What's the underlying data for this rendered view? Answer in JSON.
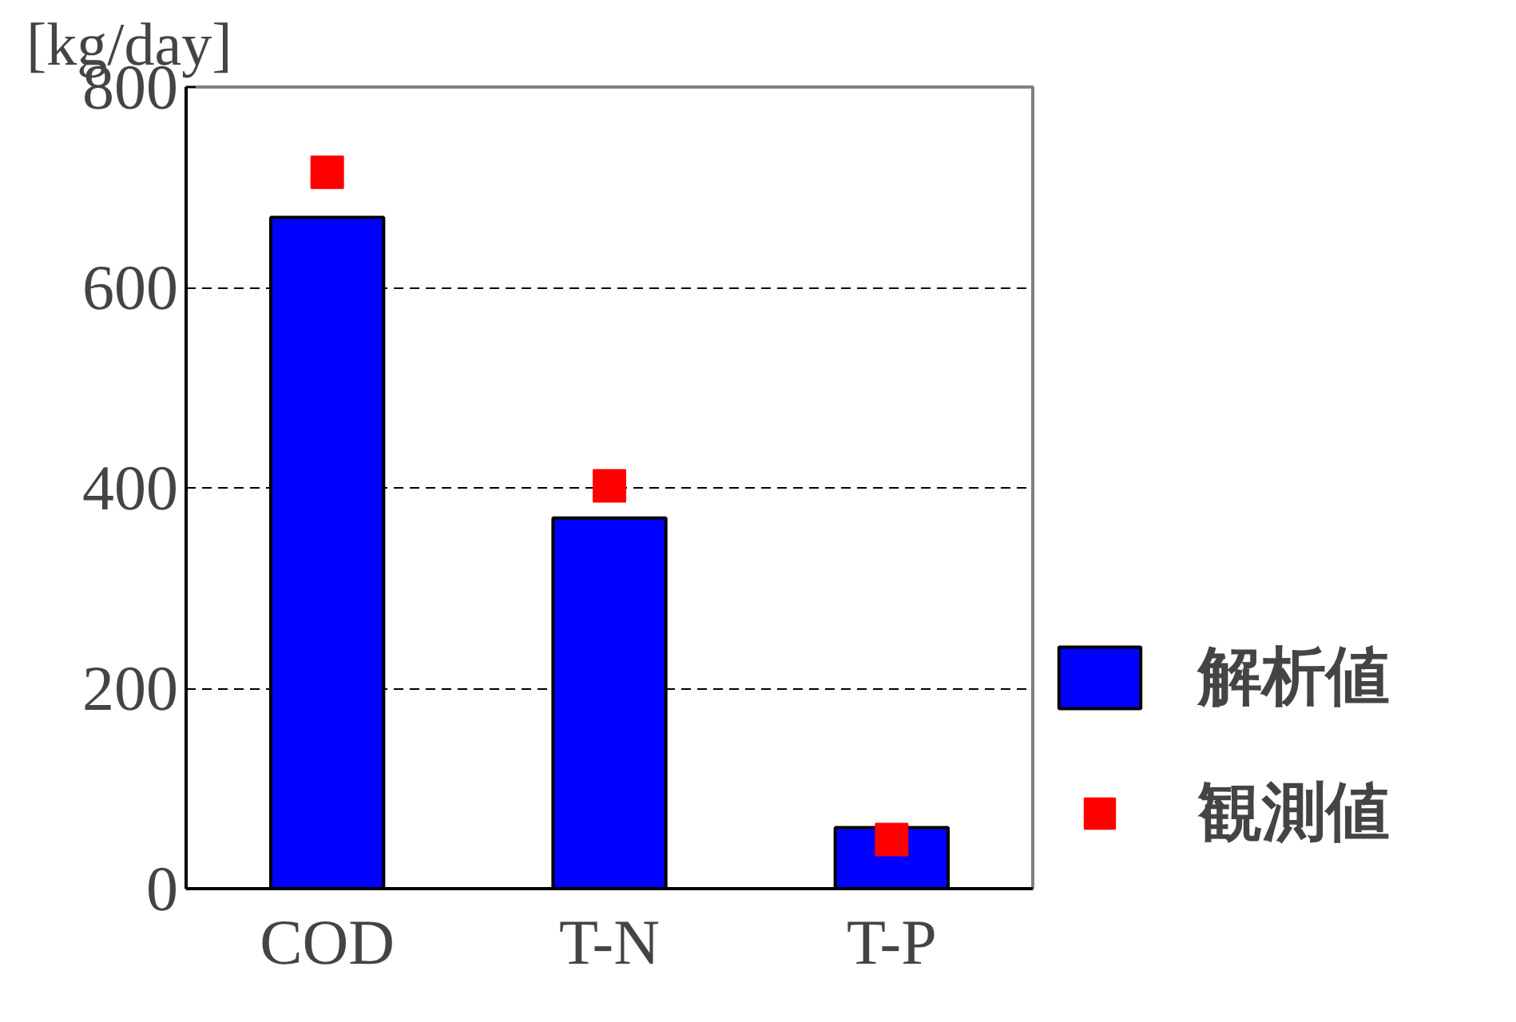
{
  "chart_data": {
    "type": "bar",
    "ylabel": "[kg/day]",
    "categories": [
      "COD",
      "T-N",
      "T-P"
    ],
    "series": [
      {
        "name": "解析値",
        "type": "bar",
        "color": "#0000ff",
        "values": [
          670,
          370,
          61
        ]
      },
      {
        "name": "観測値",
        "type": "scatter",
        "color": "#ff0000",
        "marker": "square",
        "values": [
          715,
          402,
          49
        ]
      }
    ],
    "ylim": [
      0,
      800
    ],
    "yticks": [
      0,
      200,
      400,
      600,
      800
    ],
    "grid": "y",
    "legend": "right"
  }
}
